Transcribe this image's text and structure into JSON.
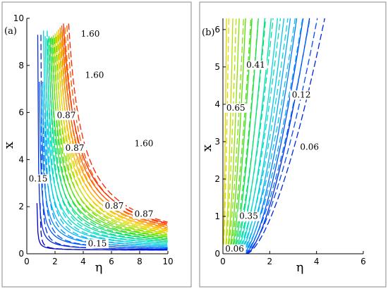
{
  "chart_data": [
    {
      "type": "line",
      "panel_label": "(a)",
      "xlabel": "η",
      "ylabel": "x",
      "xlim": [
        0,
        10
      ],
      "ylim": [
        0,
        10
      ],
      "x_ticks": [
        "0",
        "2",
        "4",
        "6",
        "8",
        "10"
      ],
      "y_ticks": [
        "0",
        "2",
        "4",
        "6",
        "8",
        "10"
      ],
      "line_styles": [
        "solid",
        "dashed"
      ],
      "colormap": [
        "#0000c8",
        "#0050ff",
        "#00b4ff",
        "#00e0d0",
        "#00e080",
        "#40e000",
        "#b0e000",
        "#ffd000",
        "#ff8000",
        "#ff2000"
      ],
      "contour_levels": 18,
      "labels": [
        {
          "text": "1.60",
          "x": 4.5,
          "y": 9.25
        },
        {
          "text": "1.60",
          "x": 4.8,
          "y": 7.5
        },
        {
          "text": "0.87",
          "x": 2.8,
          "y": 5.8
        },
        {
          "text": "0.87",
          "x": 3.4,
          "y": 4.4
        },
        {
          "text": "1.60",
          "x": 8.3,
          "y": 4.6
        },
        {
          "text": "0.15",
          "x": 0.8,
          "y": 3.1
        },
        {
          "text": "0.87",
          "x": 6.2,
          "y": 1.95
        },
        {
          "text": "0.87",
          "x": 8.3,
          "y": 1.6
        },
        {
          "text": "0.15",
          "x": 5.0,
          "y": 0.35
        }
      ]
    },
    {
      "type": "line",
      "panel_label": "(b)",
      "xlabel": "η",
      "ylabel": "x",
      "xlim": [
        0,
        6
      ],
      "ylim": [
        0,
        6.3
      ],
      "x_ticks": [
        "0",
        "2",
        "4",
        "6"
      ],
      "y_ticks": [
        "0",
        "1",
        "2",
        "3",
        "4",
        "5",
        "6"
      ],
      "line_styles": [
        "solid",
        "dashed"
      ],
      "colormap": [
        "#0000c8",
        "#0050ff",
        "#00b4ff",
        "#00e0d0",
        "#00e080",
        "#40e000",
        "#b0e000",
        "#ffd000",
        "#ff8000",
        "#ff2000"
      ],
      "contour_levels": 14,
      "labels": [
        {
          "text": "0.41",
          "x": 1.4,
          "y": 5.0
        },
        {
          "text": "0.12",
          "x": 3.35,
          "y": 4.2
        },
        {
          "text": "0.65",
          "x": 0.55,
          "y": 3.85
        },
        {
          "text": "0.06",
          "x": 3.7,
          "y": 2.8
        },
        {
          "text": "0.35",
          "x": 1.1,
          "y": 0.95
        },
        {
          "text": "0.06",
          "x": 0.5,
          "y": 0.08
        }
      ]
    }
  ]
}
